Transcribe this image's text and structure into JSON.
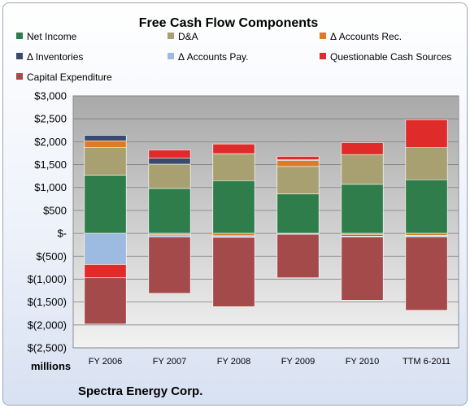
{
  "chart_data": {
    "type": "bar",
    "stacked": true,
    "title": "Free Cash Flow Components",
    "unit_label": "millions",
    "footer": "Spectra Energy Corp.",
    "categories": [
      "FY 2006",
      "FY 2007",
      "FY 2008",
      "FY 2009",
      "FY 2010",
      "TTM 6-2011"
    ],
    "ylim": [
      -2500,
      3000
    ],
    "ytick_values": [
      3000,
      2500,
      2000,
      1500,
      1000,
      500,
      0,
      -500,
      -1000,
      -1500,
      -2000,
      -2500
    ],
    "ytick_labels": [
      "$3,000",
      "$2,500",
      "$2,000",
      "$1,500",
      "$1,000",
      "$500",
      "$-",
      "$(500)",
      "$(1,000)",
      "$(1,500)",
      "$(2,000)",
      "$(2,500)"
    ],
    "grid": true,
    "legend_position": "top",
    "series": [
      {
        "name": "Net Income",
        "color": "#2e7d4a",
        "values": [
          1270,
          980,
          1150,
          860,
          1070,
          1170
        ]
      },
      {
        "name": "D&A",
        "color": "#a8a070",
        "values": [
          600,
          530,
          590,
          600,
          650,
          700
        ]
      },
      {
        "name": "Δ Accounts Rec.",
        "color": "#e07b24",
        "values": [
          150,
          -30,
          -40,
          130,
          -30,
          -40
        ]
      },
      {
        "name": "Δ Inventories",
        "color": "#3a4a6e",
        "values": [
          120,
          130,
          -20,
          20,
          -30,
          -10
        ]
      },
      {
        "name": "Δ Accounts Pay.",
        "color": "#9dbbe0",
        "values": [
          -680,
          -50,
          -30,
          -20,
          -20,
          -30
        ]
      },
      {
        "name": "Questionable Cash Sources",
        "color": "#e02b2b",
        "values": [
          -290,
          180,
          210,
          70,
          260,
          610
        ]
      },
      {
        "name": "Capital Expenditure",
        "color": "#a44a4a",
        "values": [
          -1010,
          -1230,
          -1510,
          -950,
          -1380,
          -1600
        ]
      }
    ]
  }
}
